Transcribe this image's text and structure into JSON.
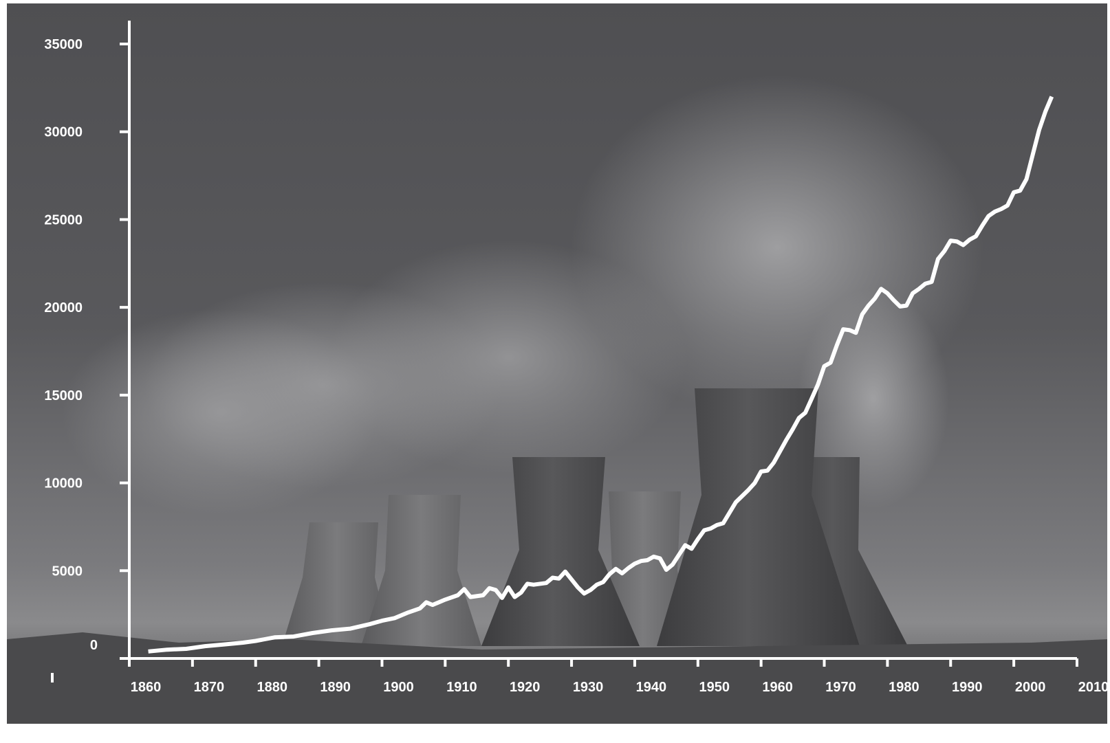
{
  "chart_data": {
    "type": "line",
    "title": "",
    "xlabel": "",
    "ylabel": "",
    "xlim": [
      1860,
      2010
    ],
    "ylim": [
      0,
      35000
    ],
    "grid": false,
    "x_ticks": [
      1860,
      1870,
      1880,
      1890,
      1900,
      1910,
      1920,
      1930,
      1940,
      1950,
      1960,
      1970,
      1980,
      1990,
      2000,
      2010
    ],
    "y_ticks": [
      0,
      5000,
      10000,
      15000,
      20000,
      25000,
      30000,
      35000
    ],
    "x_tick_labels": [
      "1860",
      "1870",
      "1880",
      "1890",
      "1900",
      "1910",
      "1920",
      "1930",
      "1940",
      "1950",
      "1960",
      "1970",
      "1980",
      "1990",
      "2000",
      "2010"
    ],
    "y_tick_labels": [
      "0",
      "5000",
      "10000",
      "15000",
      "20000",
      "25000",
      "30000",
      "35000"
    ],
    "line_color": "#ffffff",
    "axis_color": "#ffffff",
    "background": "photo of power station cooling towers emitting steam, grayscale",
    "series": [
      {
        "points": [
          [
            1863,
            400
          ],
          [
            1866,
            500
          ],
          [
            1869,
            550
          ],
          [
            1872,
            700
          ],
          [
            1875,
            800
          ],
          [
            1878,
            900
          ],
          [
            1880,
            1000
          ],
          [
            1883,
            1200
          ],
          [
            1886,
            1250
          ],
          [
            1889,
            1450
          ],
          [
            1892,
            1600
          ],
          [
            1895,
            1700
          ],
          [
            1898,
            1950
          ],
          [
            1900,
            2150
          ],
          [
            1902,
            2300
          ],
          [
            1904,
            2600
          ],
          [
            1906,
            2850
          ],
          [
            1907,
            3200
          ],
          [
            1908,
            3050
          ],
          [
            1910,
            3350
          ],
          [
            1912,
            3600
          ],
          [
            1913,
            3950
          ],
          [
            1914,
            3500
          ],
          [
            1916,
            3600
          ],
          [
            1917,
            4000
          ],
          [
            1918,
            3900
          ],
          [
            1919,
            3450
          ],
          [
            1920,
            4050
          ],
          [
            1921,
            3500
          ],
          [
            1922,
            3750
          ],
          [
            1923,
            4250
          ],
          [
            1924,
            4200
          ],
          [
            1926,
            4300
          ],
          [
            1927,
            4600
          ],
          [
            1928,
            4550
          ],
          [
            1929,
            4950
          ],
          [
            1930,
            4500
          ],
          [
            1931,
            4050
          ],
          [
            1932,
            3700
          ],
          [
            1933,
            3900
          ],
          [
            1934,
            4200
          ],
          [
            1935,
            4350
          ],
          [
            1936,
            4800
          ],
          [
            1937,
            5100
          ],
          [
            1938,
            4850
          ],
          [
            1939,
            5150
          ],
          [
            1940,
            5400
          ],
          [
            1941,
            5550
          ],
          [
            1942,
            5600
          ],
          [
            1943,
            5800
          ],
          [
            1944,
            5700
          ],
          [
            1945,
            5050
          ],
          [
            1946,
            5350
          ],
          [
            1947,
            5900
          ],
          [
            1948,
            6450
          ],
          [
            1949,
            6250
          ],
          [
            1950,
            6800
          ],
          [
            1951,
            7300
          ],
          [
            1952,
            7400
          ],
          [
            1953,
            7600
          ],
          [
            1954,
            7700
          ],
          [
            1955,
            8300
          ],
          [
            1956,
            8900
          ],
          [
            1958,
            9600
          ],
          [
            1959,
            10000
          ],
          [
            1960,
            10650
          ],
          [
            1961,
            10700
          ],
          [
            1962,
            11150
          ],
          [
            1963,
            11800
          ],
          [
            1964,
            12450
          ],
          [
            1965,
            13050
          ],
          [
            1966,
            13700
          ],
          [
            1967,
            14000
          ],
          [
            1968,
            14800
          ],
          [
            1969,
            15600
          ],
          [
            1970,
            16650
          ],
          [
            1971,
            16850
          ],
          [
            1972,
            17850
          ],
          [
            1973,
            18750
          ],
          [
            1974,
            18700
          ],
          [
            1975,
            18550
          ],
          [
            1976,
            19600
          ],
          [
            1977,
            20100
          ],
          [
            1978,
            20500
          ],
          [
            1979,
            21050
          ],
          [
            1980,
            20800
          ],
          [
            1981,
            20400
          ],
          [
            1982,
            20050
          ],
          [
            1983,
            20100
          ],
          [
            1984,
            20800
          ],
          [
            1985,
            21050
          ],
          [
            1986,
            21350
          ],
          [
            1987,
            21450
          ],
          [
            1988,
            22750
          ],
          [
            1989,
            23200
          ],
          [
            1990,
            23800
          ],
          [
            1991,
            23750
          ],
          [
            1992,
            23550
          ],
          [
            1993,
            23850
          ],
          [
            1994,
            24050
          ],
          [
            1995,
            24650
          ],
          [
            1996,
            25200
          ],
          [
            1997,
            25450
          ],
          [
            1998,
            25600
          ],
          [
            1999,
            25800
          ],
          [
            2000,
            26550
          ],
          [
            2001,
            26650
          ],
          [
            2002,
            27300
          ],
          [
            2003,
            28700
          ],
          [
            2004,
            30100
          ],
          [
            2005,
            31150
          ],
          [
            2006,
            32000
          ]
        ]
      }
    ]
  }
}
